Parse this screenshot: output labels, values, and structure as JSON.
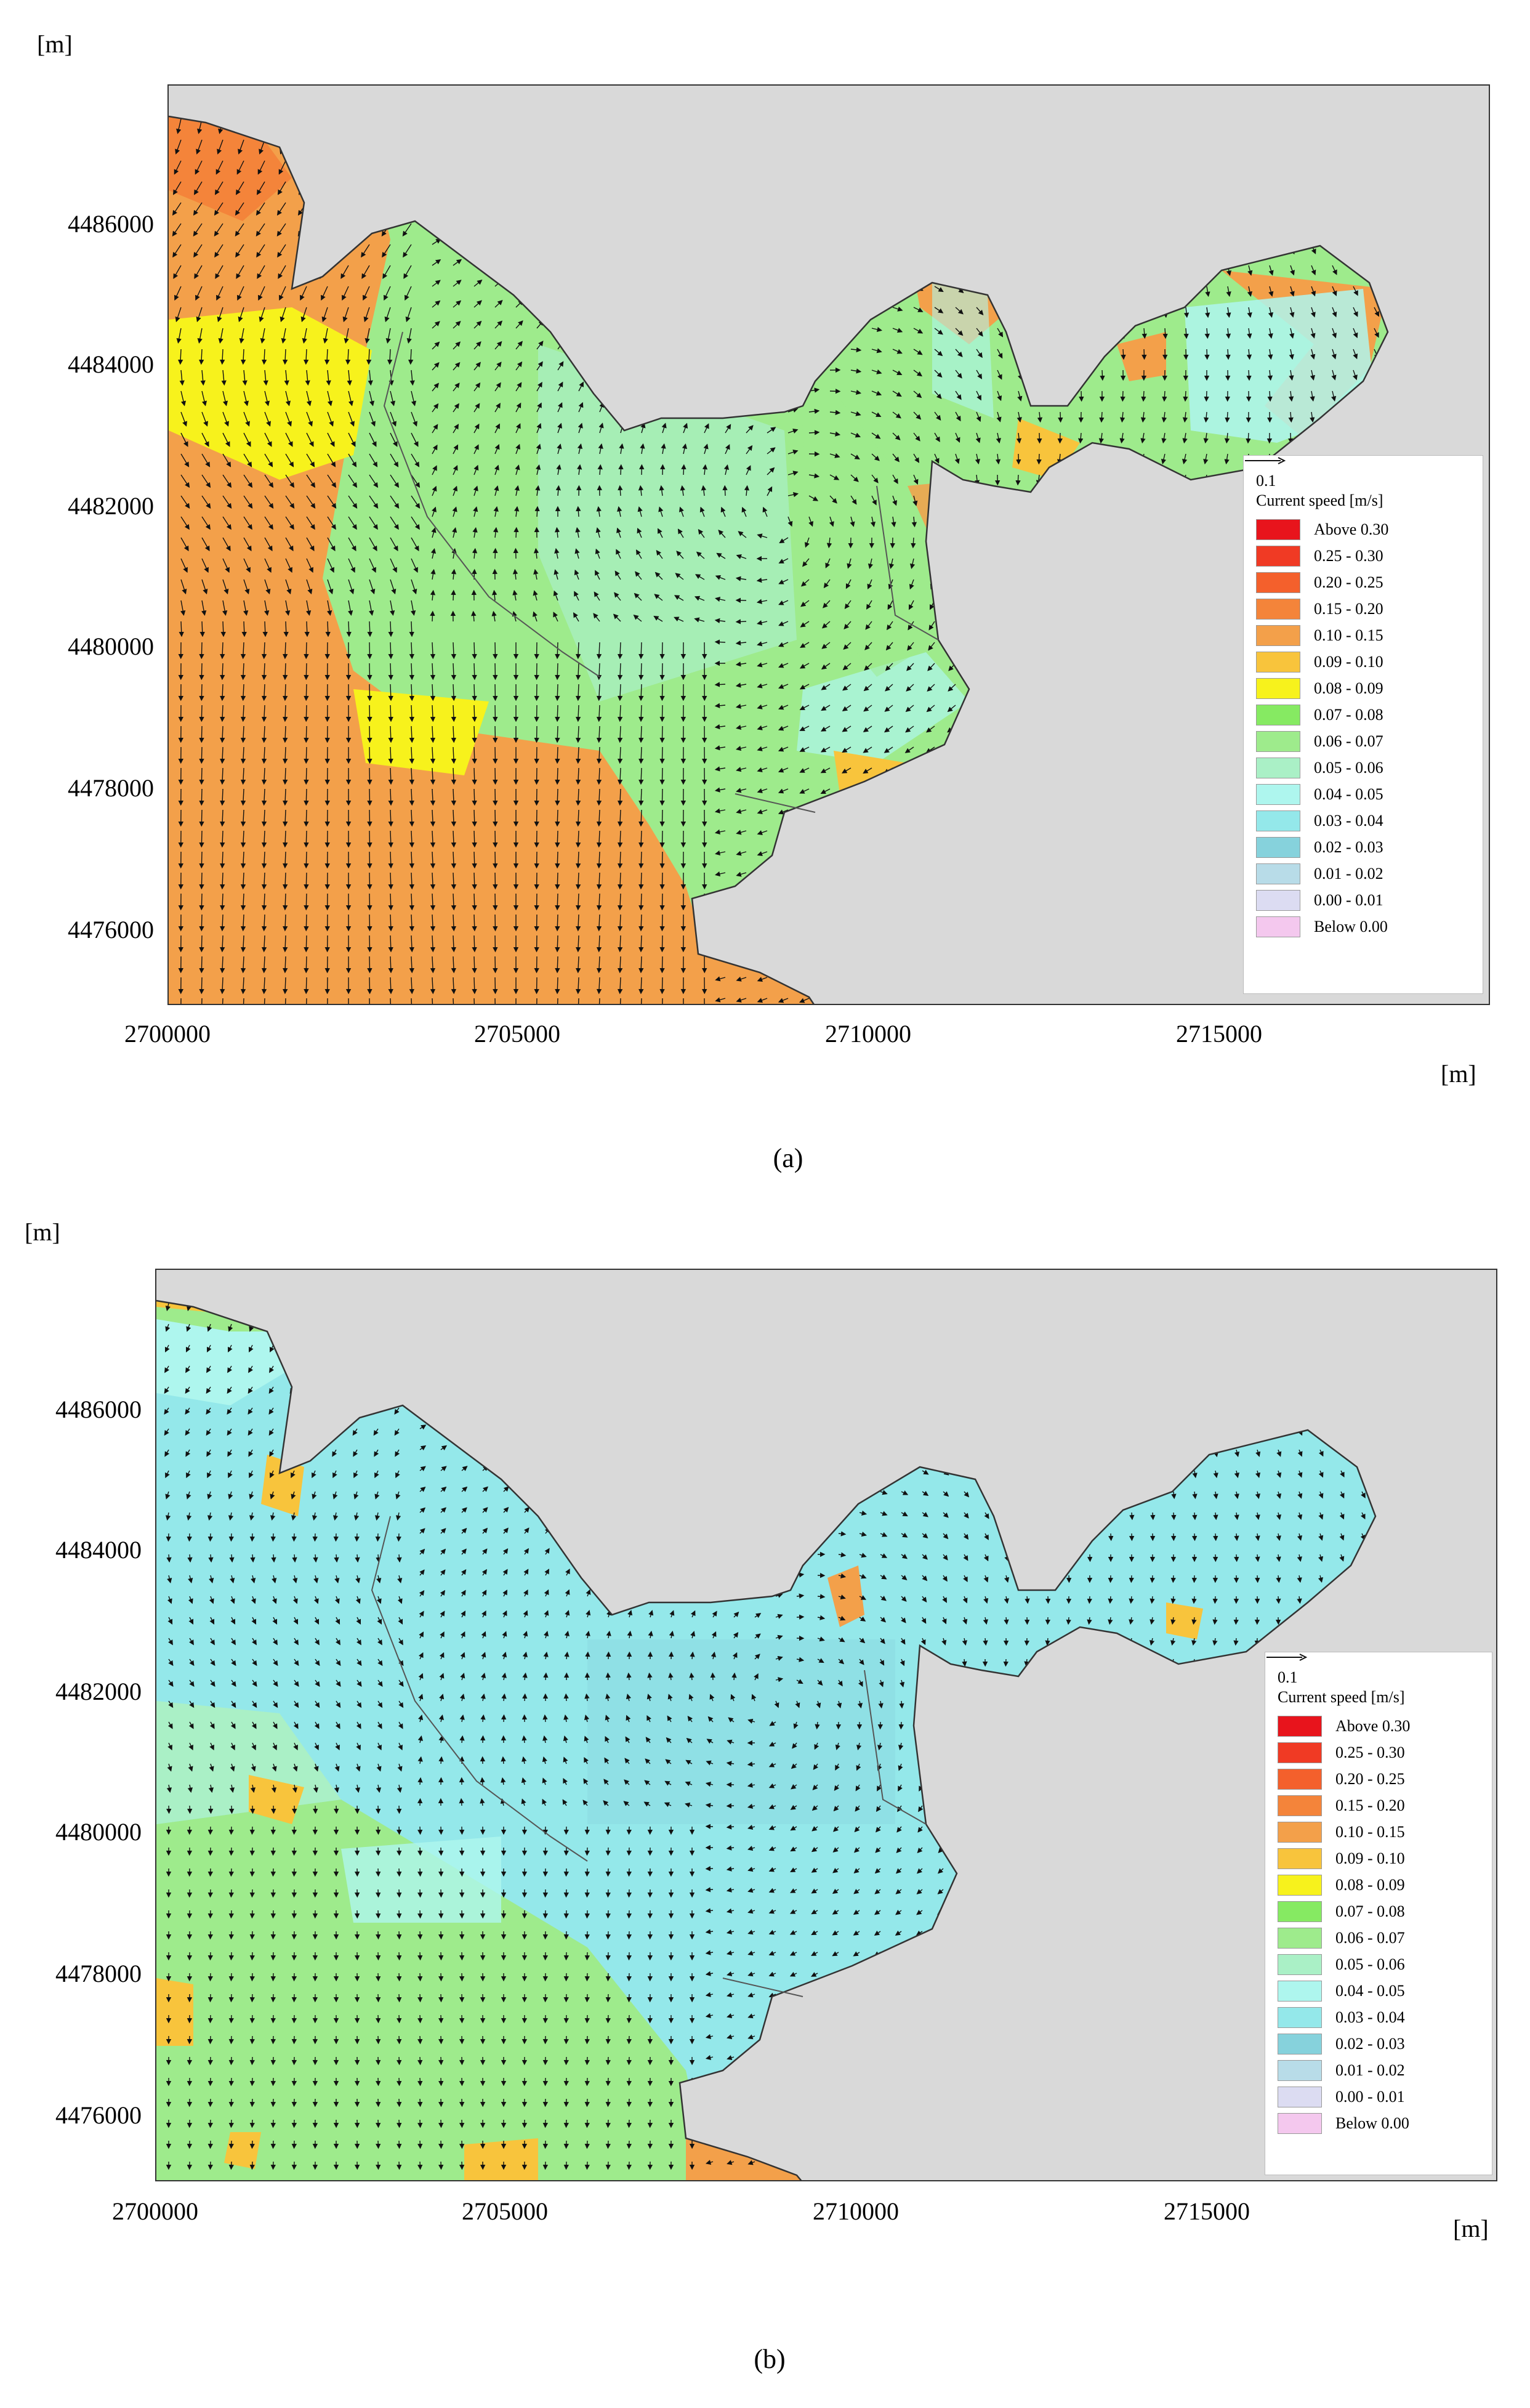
{
  "panels": [
    {
      "caption": "(a)",
      "y_unit": "[m]",
      "x_unit": "[m]",
      "y_ticks": [
        "4486000",
        "4484000",
        "4482000",
        "4480000",
        "4478000",
        "4476000"
      ],
      "x_ticks": [
        "2700000",
        "2705000",
        "2710000",
        "2715000"
      ]
    },
    {
      "caption": "(b)",
      "y_unit": "[m]",
      "x_unit": "[m]",
      "y_ticks": [
        "4486000",
        "4484000",
        "4482000",
        "4480000",
        "4478000",
        "4476000"
      ],
      "x_ticks": [
        "2700000",
        "2705000",
        "2710000",
        "2715000"
      ]
    }
  ],
  "legend": {
    "arrow_scale": "0.1",
    "title": "Current speed [m/s]",
    "classes": [
      {
        "label": "Above 0.30",
        "color": "#e8141c"
      },
      {
        "label": "0.25 - 0.30",
        "color": "#f03a24"
      },
      {
        "label": "0.20 - 0.25",
        "color": "#f4602c"
      },
      {
        "label": "0.15 - 0.20",
        "color": "#f4843a"
      },
      {
        "label": "0.10 - 0.15",
        "color": "#f3a04a"
      },
      {
        "label": "0.09 - 0.10",
        "color": "#f8c43c"
      },
      {
        "label": "0.08 - 0.09",
        "color": "#f7f21c"
      },
      {
        "label": "0.07 - 0.08",
        "color": "#86ea62"
      },
      {
        "label": "0.06 - 0.07",
        "color": "#9eeb8c"
      },
      {
        "label": "0.05 - 0.06",
        "color": "#aaf0c6"
      },
      {
        "label": "0.04 - 0.05",
        "color": "#aef6ee"
      },
      {
        "label": "0.03 - 0.04",
        "color": "#94e8ea"
      },
      {
        "label": "0.02 - 0.03",
        "color": "#86d2dc"
      },
      {
        "label": "0.01 - 0.02",
        "color": "#b8dce8"
      },
      {
        "label": "0.00 - 0.01",
        "color": "#dcdcf2"
      },
      {
        "label": "Below 0.00",
        "color": "#f4c8ee"
      }
    ]
  },
  "colors": {
    "land": "#d9d9d9",
    "coast": "#333333",
    "vector": "#111111"
  }
}
